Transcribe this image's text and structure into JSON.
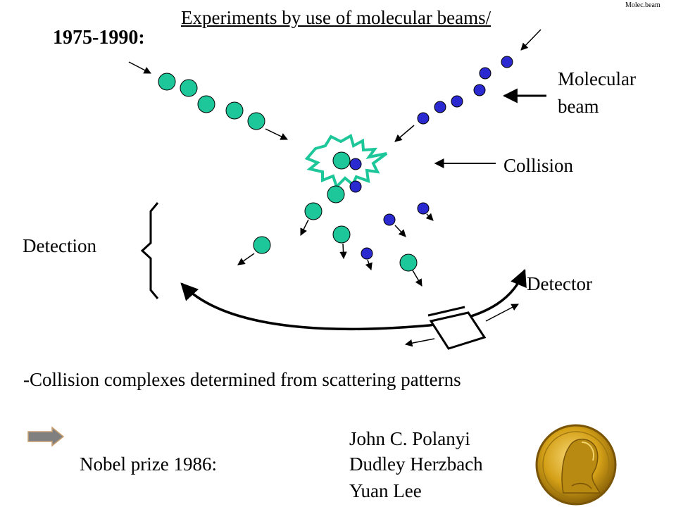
{
  "corner_label": "Molec.beam",
  "title": "Experiments by use of molecular beams/",
  "period": "1975-1990:",
  "labels": {
    "molecular_beam_line1": "Molecular",
    "molecular_beam_line2": "beam",
    "collision": "Collision",
    "detection": "Detection",
    "detector": "Detector"
  },
  "conclusion": "-Collision complexes determined from scattering patterns",
  "nobel": {
    "label": "Nobel prize 1986:",
    "laureates": [
      "John C. Polanyi",
      "Dudley Herzbach",
      "Yuan Lee"
    ]
  },
  "colors": {
    "green_molecule": "#1ec79a",
    "blue_molecule": "#2a2ad0",
    "outline": "#000000",
    "collision_star": "#1ec79a",
    "arrow_button": "#808080",
    "medal_gold": "#d4a017"
  },
  "icons": {
    "bullet": "right-arrow-icon",
    "medal": "nobel-medal-icon"
  }
}
